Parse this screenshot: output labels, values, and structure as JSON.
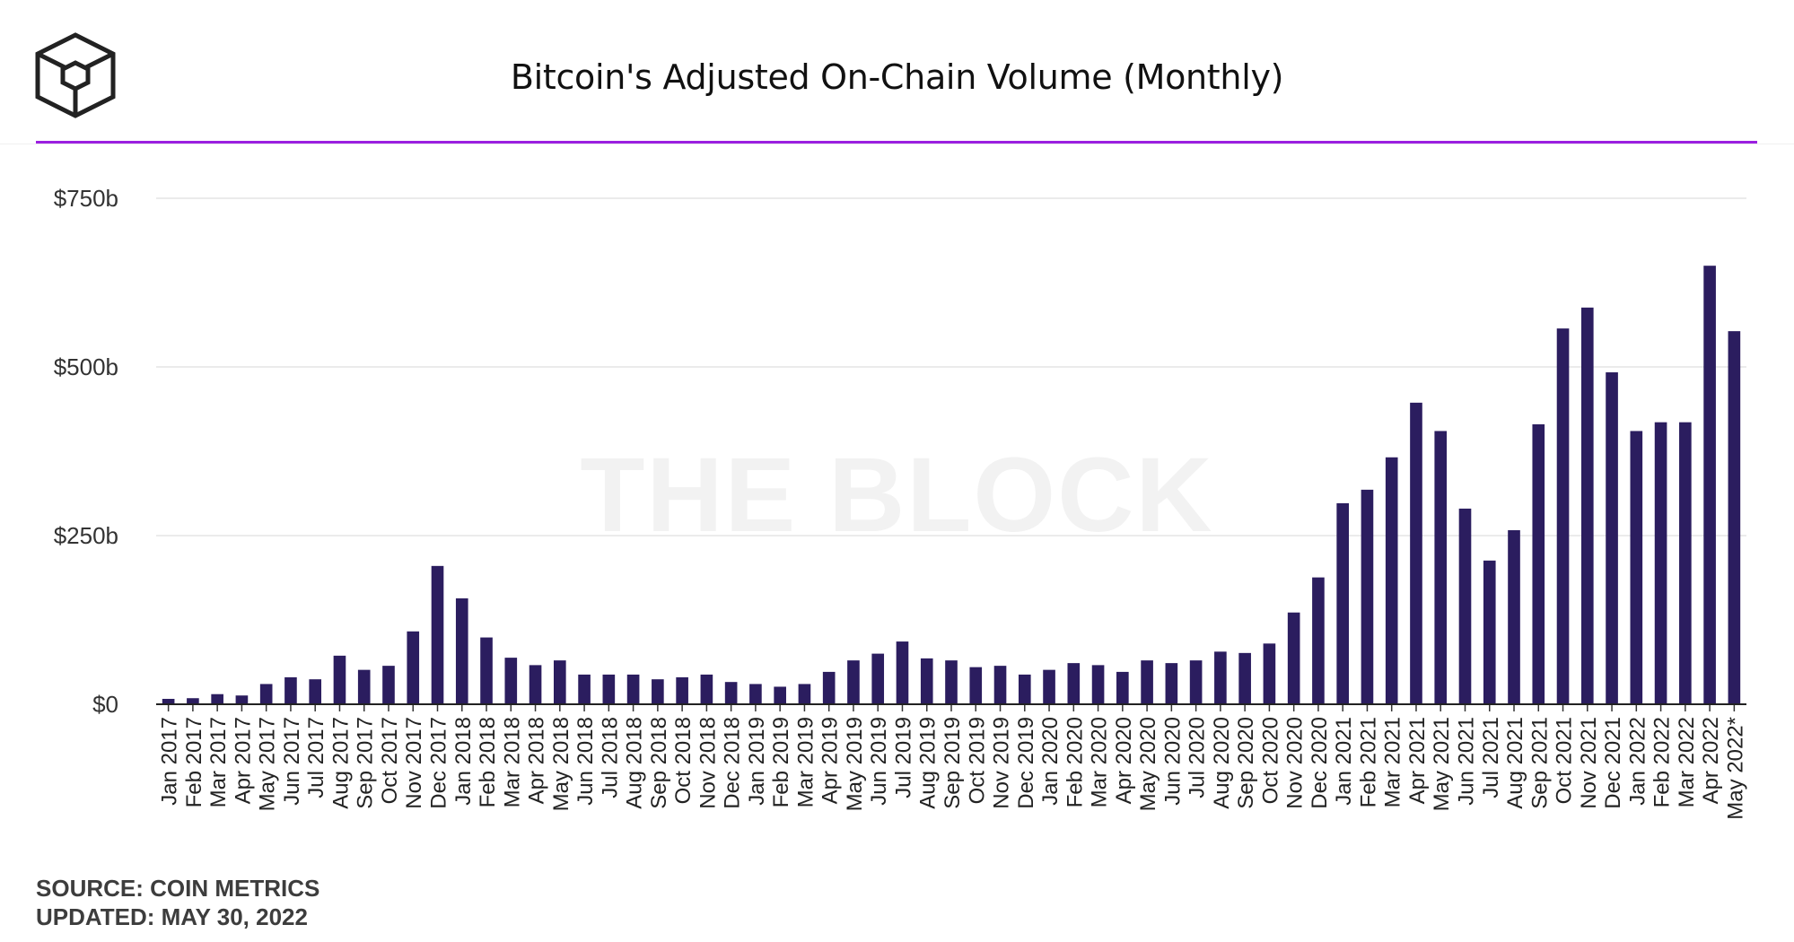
{
  "header": {
    "title": "Bitcoin's Adjusted On-Chain Volume (Monthly)",
    "logo_icon": "the-block-cube-icon",
    "accent_color": "#9b1fe0"
  },
  "watermark": "THE BLOCK",
  "footer": {
    "source": "SOURCE: COIN METRICS",
    "updated": "UPDATED: MAY 30, 2022"
  },
  "chart_data": {
    "type": "bar",
    "title": "Bitcoin's Adjusted On-Chain Volume (Monthly)",
    "xlabel": "",
    "ylabel": "",
    "ylim": [
      0,
      750
    ],
    "value_unit": "billion USD",
    "yticks": [
      0,
      250,
      500,
      750
    ],
    "ytick_labels": [
      "$0",
      "$250b",
      "$500b",
      "$750b"
    ],
    "grid": true,
    "legend": "none",
    "bar_color": "#2b1d5f",
    "categories": [
      "Jan 2017",
      "Feb 2017",
      "Mar 2017",
      "Apr 2017",
      "May 2017",
      "Jun 2017",
      "Jul 2017",
      "Aug 2017",
      "Sep 2017",
      "Oct 2017",
      "Nov 2017",
      "Dec 2017",
      "Jan 2018",
      "Feb 2018",
      "Mar 2018",
      "Apr 2018",
      "May 2018",
      "Jun 2018",
      "Jul 2018",
      "Aug 2018",
      "Sep 2018",
      "Oct 2018",
      "Nov 2018",
      "Dec 2018",
      "Jan 2019",
      "Feb 2019",
      "Mar 2019",
      "Apr 2019",
      "May 2019",
      "Jun 2019",
      "Jul 2019",
      "Aug 2019",
      "Sep 2019",
      "Oct 2019",
      "Nov 2019",
      "Dec 2019",
      "Jan 2020",
      "Feb 2020",
      "Mar 2020",
      "Apr 2020",
      "May 2020",
      "Jun 2020",
      "Jul 2020",
      "Aug 2020",
      "Sep 2020",
      "Oct 2020",
      "Nov 2020",
      "Dec 2020",
      "Jan 2021",
      "Feb 2021",
      "Mar 2021",
      "Apr 2021",
      "May 2021",
      "Jun 2021",
      "Jul 2021",
      "Aug 2021",
      "Sep 2021",
      "Oct 2021",
      "Nov 2021",
      "Dec 2021",
      "Jan 2022",
      "Feb 2022",
      "Mar 2022",
      "Apr 2022",
      "May 2022*"
    ],
    "values": [
      8,
      9,
      15,
      13,
      30,
      40,
      37,
      72,
      51,
      57,
      108,
      205,
      157,
      99,
      69,
      58,
      65,
      44,
      44,
      44,
      37,
      40,
      44,
      33,
      30,
      26,
      30,
      48,
      65,
      75,
      93,
      68,
      65,
      55,
      57,
      44,
      51,
      61,
      58,
      48,
      65,
      61,
      65,
      78,
      76,
      90,
      136,
      188,
      298,
      318,
      366,
      447,
      405,
      290,
      213,
      258,
      415,
      557,
      588,
      492,
      405,
      418,
      418,
      650,
      553
    ]
  }
}
